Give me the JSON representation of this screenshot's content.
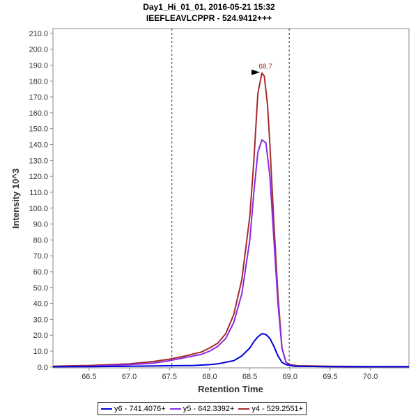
{
  "chart_data": {
    "type": "line",
    "title": "Day1_Hi_01_01, 2016-05-21 15:32",
    "subtitle": "IEEFLEAVLCPPR - 524.9412+++",
    "xlabel": "Retention Time",
    "ylabel": "Intensity 10^3",
    "xlim": [
      66.05,
      70.48
    ],
    "ylim": [
      -0.5,
      213
    ],
    "x_ticks": [
      66.5,
      67.0,
      67.5,
      68.0,
      68.5,
      69.0,
      69.5,
      70.0
    ],
    "x_tick_labels": [
      "66.5",
      "67.0",
      "67.5",
      "68.0",
      "68.5",
      "69.0",
      "69.5",
      "70.0"
    ],
    "y_ticks": [
      0,
      10,
      20,
      30,
      40,
      50,
      60,
      70,
      80,
      90,
      100,
      110,
      120,
      130,
      140,
      150,
      160,
      170,
      180,
      190,
      200,
      210
    ],
    "y_tick_labels": [
      "0.0",
      "10.0",
      "20.0",
      "30.0",
      "40.0",
      "50.0",
      "60.0",
      "70.0",
      "80.0",
      "90.0",
      "100.0",
      "110.0",
      "120.0",
      "130.0",
      "140.0",
      "150.0",
      "160.0",
      "170.0",
      "180.0",
      "190.0",
      "200.0",
      "210.0"
    ],
    "integration_bounds": [
      67.53,
      68.99
    ],
    "peak_annotation": {
      "x": 68.66,
      "y": 185.5,
      "label": "68.7"
    },
    "series": [
      {
        "name": "y6 - 741.4076+",
        "color": "#0000dd",
        "x": [
          66.05,
          66.5,
          67.0,
          67.5,
          67.8,
          68.0,
          68.1,
          68.2,
          68.3,
          68.4,
          68.5,
          68.55,
          68.6,
          68.65,
          68.7,
          68.75,
          68.8,
          68.85,
          68.9,
          68.95,
          69.0,
          69.05,
          69.1,
          69.2,
          69.5,
          70.0,
          70.48
        ],
        "y": [
          0.2,
          0.3,
          0.5,
          0.8,
          1.0,
          1.5,
          2.0,
          3.0,
          4.0,
          7.0,
          12.0,
          16.0,
          19.0,
          21.0,
          20.5,
          18.0,
          13.0,
          7.0,
          3.0,
          1.5,
          1.0,
          0.5,
          0.5,
          0.4,
          0.3,
          0.2,
          0.2
        ]
      },
      {
        "name": "y5 - 642.3392+",
        "color": "#8a2be2",
        "x": [
          66.05,
          66.5,
          67.0,
          67.3,
          67.5,
          67.7,
          67.9,
          68.0,
          68.1,
          68.2,
          68.3,
          68.4,
          68.5,
          68.55,
          68.6,
          68.65,
          68.7,
          68.75,
          68.8,
          68.85,
          68.9,
          68.95,
          69.0,
          69.1,
          69.5,
          70.0,
          70.48
        ],
        "y": [
          0.3,
          0.5,
          1.5,
          2.5,
          4.0,
          6.0,
          8.0,
          10.0,
          13.0,
          18.0,
          28.0,
          46.0,
          80.0,
          110.0,
          135.0,
          143.0,
          141.0,
          120.0,
          80.0,
          40.0,
          12.0,
          3.0,
          1.0,
          0.5,
          0.3,
          0.2,
          0.2
        ]
      },
      {
        "name": "y4 - 529.2551+",
        "color": "#a52a2a",
        "x": [
          66.05,
          66.3,
          66.5,
          67.0,
          67.3,
          67.5,
          67.7,
          67.9,
          68.0,
          68.1,
          68.2,
          68.3,
          68.4,
          68.5,
          68.55,
          68.6,
          68.65,
          68.68,
          68.72,
          68.75,
          68.8,
          68.85,
          68.9,
          68.95,
          69.0,
          69.1,
          69.5,
          70.0,
          70.48
        ],
        "y": [
          0.5,
          0.8,
          1.0,
          2.0,
          3.5,
          5.0,
          7.0,
          9.5,
          12.0,
          15.0,
          21.0,
          33.0,
          55.0,
          95.0,
          130.0,
          172.0,
          185.0,
          183.0,
          165.0,
          140.0,
          90.0,
          45.0,
          12.0,
          3.0,
          1.5,
          0.8,
          0.5,
          0.3,
          0.3
        ]
      }
    ]
  }
}
